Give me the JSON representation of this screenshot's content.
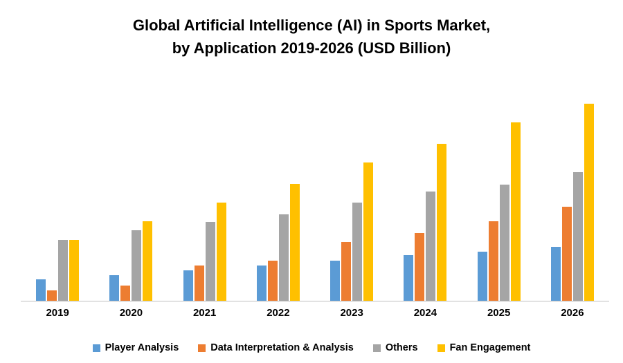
{
  "title": {
    "line1": "Global Artificial Intelligence (AI) in Sports Market,",
    "line2": "by Application 2019-2026 (USD Billion)"
  },
  "chart_data": {
    "type": "bar",
    "title": "Global Artificial Intelligence (AI) in Sports Market, by Application 2019-2026 (USD Billion)",
    "units": "USD Billion",
    "categories": [
      "2019",
      "2020",
      "2021",
      "2022",
      "2023",
      "2024",
      "2025",
      "2026"
    ],
    "series": [
      {
        "name": "Player Analysis",
        "color": "#5B9BD5",
        "values": [
          0.9,
          1.1,
          1.3,
          1.5,
          1.7,
          1.95,
          2.1,
          2.3
        ]
      },
      {
        "name": "Data Interpretation & Analysis",
        "color": "#ED7D31",
        "values": [
          0.45,
          0.65,
          1.5,
          1.7,
          2.5,
          2.9,
          3.4,
          4.0
        ]
      },
      {
        "name": "Others",
        "color": "#A5A5A5",
        "values": [
          2.6,
          3.0,
          3.35,
          3.7,
          4.2,
          4.65,
          4.95,
          5.5
        ]
      },
      {
        "name": "Fan Engagement",
        "color": "#FFC000",
        "values": [
          2.6,
          3.4,
          4.2,
          5.0,
          5.9,
          6.7,
          7.6,
          8.4
        ]
      }
    ],
    "xlabel": "",
    "ylabel": "",
    "ylim": [
      0,
      9
    ],
    "grid": false,
    "y_axis_labels_visible": false,
    "legend_position": "bottom"
  }
}
